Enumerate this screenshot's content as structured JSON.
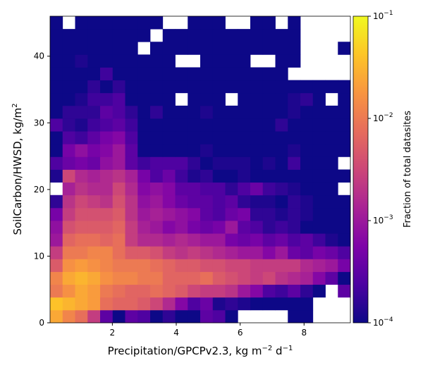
{
  "chart_data": {
    "type": "heatmap",
    "xlabel": "Precipitation/GPCPv2.3,  kg m$^{-2}$ d$^{-1}$",
    "xlabel_parts": {
      "main": "Precipitation/GPCPv2.3,  kg m",
      "sup1": "−2",
      "mid": " d",
      "sup2": "−1"
    },
    "ylabel_parts": {
      "main": "SoilCarbon/HWSD,  kg/m",
      "sup": "2"
    },
    "xlim": [
      0.05,
      9.45
    ],
    "ylim": [
      0,
      46.0
    ],
    "x_ticks": [
      2,
      4,
      6,
      8
    ],
    "y_ticks": [
      0,
      10,
      20,
      30,
      40
    ],
    "colorbar": {
      "label": "Fraction of total datasites",
      "scale": "log",
      "vmin": 0.0001,
      "vmax": 0.1,
      "ticks": [
        {
          "value": 0.1,
          "base": "10",
          "exp": "−1"
        },
        {
          "value": 0.01,
          "base": "10",
          "exp": "−2"
        },
        {
          "value": 0.001,
          "base": "10",
          "exp": "−3"
        },
        {
          "value": 0.0001,
          "base": "10",
          "exp": "−4"
        }
      ],
      "colormap": "plasma"
    },
    "grid": {
      "nx": 24,
      "ny": 24,
      "note_rows": "rows listed bottom-to-top; values are log10(fraction), null = empty cell",
      "values": [
        [
          -1.6,
          -1.9,
          -2.1,
          -2.6,
          -3.5,
          -4.0,
          -3.5,
          -3.6,
          -4.0,
          -3.8,
          -4.0,
          -4.0,
          -3.5,
          -3.6,
          -4.0,
          null,
          null,
          null,
          null,
          -4.0,
          -4.0,
          null,
          null,
          null
        ],
        [
          -1.4,
          -1.5,
          -1.6,
          -1.7,
          -2.1,
          -2.2,
          -2.2,
          -2.3,
          -2.5,
          -2.8,
          -3.2,
          -3.6,
          -3.4,
          -3.9,
          -3.8,
          -3.9,
          -4.0,
          -4.0,
          -4.0,
          -4.0,
          -4.0,
          null,
          null,
          null
        ],
        [
          -2.0,
          -1.8,
          -1.6,
          -1.7,
          -2.0,
          -2.1,
          -2.2,
          -2.2,
          -2.1,
          -2.2,
          -2.3,
          -2.5,
          -2.6,
          -2.6,
          -2.7,
          -3.0,
          -3.2,
          -3.6,
          -3.7,
          -3.5,
          -3.8,
          -4.0,
          null,
          -3.5
        ],
        [
          -1.9,
          -1.6,
          -1.5,
          -1.6,
          -1.8,
          -1.9,
          -1.9,
          -2.0,
          -2.0,
          -2.2,
          -2.2,
          -2.2,
          -2.1,
          -2.3,
          -2.4,
          -2.5,
          -2.6,
          -2.5,
          -2.7,
          -2.8,
          -2.9,
          -3.2,
          -3.5,
          -4.0
        ],
        [
          -2.3,
          -1.8,
          -1.7,
          -1.8,
          -1.9,
          -2.0,
          -2.0,
          -2.0,
          -2.1,
          -2.2,
          -2.3,
          -2.3,
          -2.4,
          -2.4,
          -2.5,
          -2.5,
          -2.6,
          -2.6,
          -2.6,
          -2.6,
          -2.8,
          -2.9,
          -3.0,
          -3.3
        ],
        [
          -2.6,
          -2.0,
          -2.0,
          -1.9,
          -1.9,
          -2.1,
          -2.3,
          -2.3,
          -2.4,
          -2.6,
          -2.7,
          -2.6,
          -2.7,
          -2.8,
          -2.9,
          -3.0,
          -3.0,
          -3.2,
          -3.0,
          -3.4,
          -3.5,
          -3.3,
          -3.4,
          -3.6
        ],
        [
          -3.0,
          -2.2,
          -2.1,
          -2.1,
          -2.2,
          -2.1,
          -2.6,
          -2.8,
          -2.8,
          -2.9,
          -2.8,
          -2.9,
          -3.0,
          -3.0,
          -3.3,
          -3.4,
          -3.3,
          -3.5,
          -3.4,
          -3.6,
          -3.5,
          -3.7,
          -3.9,
          -4.0
        ],
        [
          -3.1,
          -2.4,
          -2.3,
          -2.3,
          -2.3,
          -2.2,
          -2.6,
          -2.9,
          -3.0,
          -3.2,
          -3.1,
          -3.3,
          -3.4,
          -3.3,
          -3.0,
          -3.5,
          -3.6,
          -3.8,
          -3.7,
          -3.8,
          -4.0,
          -4.0,
          -4.0,
          -4.0
        ],
        [
          -3.3,
          -2.6,
          -2.4,
          -2.4,
          -2.4,
          -2.3,
          -2.7,
          -3.0,
          -2.9,
          -3.0,
          -3.1,
          -3.2,
          -3.5,
          -3.6,
          -3.4,
          -3.3,
          -3.8,
          -3.8,
          -3.9,
          -3.8,
          -3.9,
          -4.0,
          -4.0,
          -4.0
        ],
        [
          -3.8,
          -2.7,
          -2.5,
          -2.6,
          -2.7,
          -2.4,
          -2.7,
          -3.1,
          -3.0,
          -3.2,
          -3.4,
          -3.5,
          -3.5,
          -3.6,
          -3.5,
          -3.8,
          -3.9,
          -3.9,
          -4.0,
          -3.8,
          -3.9,
          -4.0,
          -4.0,
          -4.0
        ],
        [
          null,
          -2.9,
          -2.7,
          -2.8,
          -2.8,
          -2.5,
          -2.8,
          -3.2,
          -3.1,
          -3.2,
          -3.5,
          -3.5,
          -3.6,
          -3.6,
          -3.8,
          -3.6,
          -3.4,
          -3.7,
          -3.8,
          -3.9,
          -4.0,
          -4.0,
          -4.0,
          null
        ],
        [
          -3.9,
          -2.5,
          -2.8,
          -2.9,
          -2.8,
          -2.7,
          -2.9,
          -3.3,
          -3.6,
          -3.4,
          -3.7,
          -3.9,
          -3.8,
          -4.0,
          -4.0,
          -3.9,
          -4.0,
          -4.0,
          -4.0,
          -4.0,
          -4.0,
          -4.0,
          -4.0,
          -4.0
        ],
        [
          -3.6,
          -3.4,
          -3.3,
          -3.4,
          -3.1,
          -3.0,
          -3.5,
          -3.7,
          -3.6,
          -3.6,
          -3.6,
          -3.8,
          -4.0,
          -3.9,
          -3.9,
          -3.9,
          -4.0,
          -3.9,
          -4.0,
          -3.7,
          -4.0,
          -4.0,
          -4.0,
          null
        ],
        [
          -4.0,
          -3.3,
          -3.1,
          -3.3,
          -3.2,
          -3.0,
          -3.5,
          -4.0,
          -4.0,
          -4.0,
          -4.0,
          -4.0,
          -3.9,
          -4.0,
          -4.0,
          -4.0,
          -4.0,
          -4.0,
          -4.0,
          -3.9,
          -4.0,
          -4.0,
          -4.0,
          -4.0
        ],
        [
          -4.0,
          -3.6,
          -3.7,
          -3.5,
          -3.3,
          -3.2,
          -3.6,
          -4.0,
          -4.0,
          -4.0,
          -4.0,
          -4.0,
          -4.0,
          -4.0,
          -4.0,
          -4.0,
          -4.0,
          -4.0,
          -4.0,
          -4.0,
          -4.0,
          -4.0,
          -4.0,
          -4.0
        ],
        [
          -3.6,
          -3.8,
          -3.9,
          -3.7,
          -3.6,
          -3.5,
          -3.7,
          -4.0,
          -4.0,
          -4.0,
          -4.0,
          -4.0,
          -4.0,
          -4.0,
          -4.0,
          -4.0,
          -4.0,
          -4.0,
          -3.8,
          -4.0,
          -4.0,
          -4.0,
          -4.0,
          -4.0
        ],
        [
          -4.0,
          -3.8,
          -3.8,
          -3.8,
          -3.5,
          -3.6,
          -3.8,
          -4.0,
          -3.8,
          -4.0,
          -4.0,
          -4.0,
          -3.9,
          -4.0,
          -4.0,
          -4.0,
          -4.0,
          -4.0,
          -4.0,
          -3.9,
          -4.0,
          -4.0,
          -4.0,
          -4.0
        ],
        [
          -4.0,
          -4.0,
          -3.9,
          -3.7,
          -3.7,
          -3.6,
          -4.0,
          -4.0,
          -4.0,
          -4.0,
          null,
          -4.0,
          -4.0,
          -4.0,
          null,
          -4.0,
          -4.0,
          -4.0,
          -4.0,
          -3.9,
          -3.8,
          -4.0,
          null,
          -4.0
        ],
        [
          -4.0,
          -4.0,
          -4.0,
          -3.8,
          -4.0,
          -3.8,
          -4.0,
          -4.0,
          -4.0,
          -4.0,
          -4.0,
          -4.0,
          -4.0,
          -4.0,
          -4.0,
          -4.0,
          -4.0,
          -4.0,
          -4.0,
          -4.0,
          -4.0,
          -4.0,
          -4.0,
          -4.0
        ],
        [
          -4.0,
          -4.0,
          -4.0,
          -4.0,
          -3.7,
          -4.0,
          -4.0,
          -4.0,
          -4.0,
          -4.0,
          -4.0,
          -4.0,
          -4.0,
          -4.0,
          -4.0,
          -4.0,
          -4.0,
          -4.0,
          -4.0,
          null,
          null,
          null,
          null,
          null
        ],
        [
          -4.0,
          -4.0,
          -3.9,
          -4.0,
          -4.0,
          -4.0,
          -4.0,
          -4.0,
          -4.0,
          -4.0,
          null,
          null,
          -4.0,
          -4.0,
          -4.0,
          -4.0,
          null,
          null,
          -4.0,
          -4.0,
          null,
          null,
          null,
          null
        ],
        [
          -4.0,
          -4.0,
          -4.0,
          -4.0,
          -4.0,
          -4.0,
          -4.0,
          null,
          -4.0,
          -4.0,
          -4.0,
          -4.0,
          -4.0,
          -4.0,
          -4.0,
          -4.0,
          -4.0,
          -4.0,
          -4.0,
          -4.0,
          null,
          null,
          null,
          -4.0
        ],
        [
          -4.0,
          -4.0,
          -4.0,
          -4.0,
          -4.0,
          -4.0,
          -4.0,
          -4.0,
          null,
          -4.0,
          -4.0,
          -4.0,
          -4.0,
          -4.0,
          -4.0,
          -4.0,
          -4.0,
          -4.0,
          -4.0,
          -4.0,
          null,
          null,
          null,
          null
        ],
        [
          -4.0,
          null,
          -4.0,
          -4.0,
          -4.0,
          -4.0,
          -4.0,
          -4.0,
          -4.0,
          null,
          null,
          -4.0,
          -4.0,
          -4.0,
          null,
          null,
          -4.0,
          -4.0,
          null,
          -4.0,
          null,
          null,
          null,
          null
        ]
      ]
    }
  }
}
